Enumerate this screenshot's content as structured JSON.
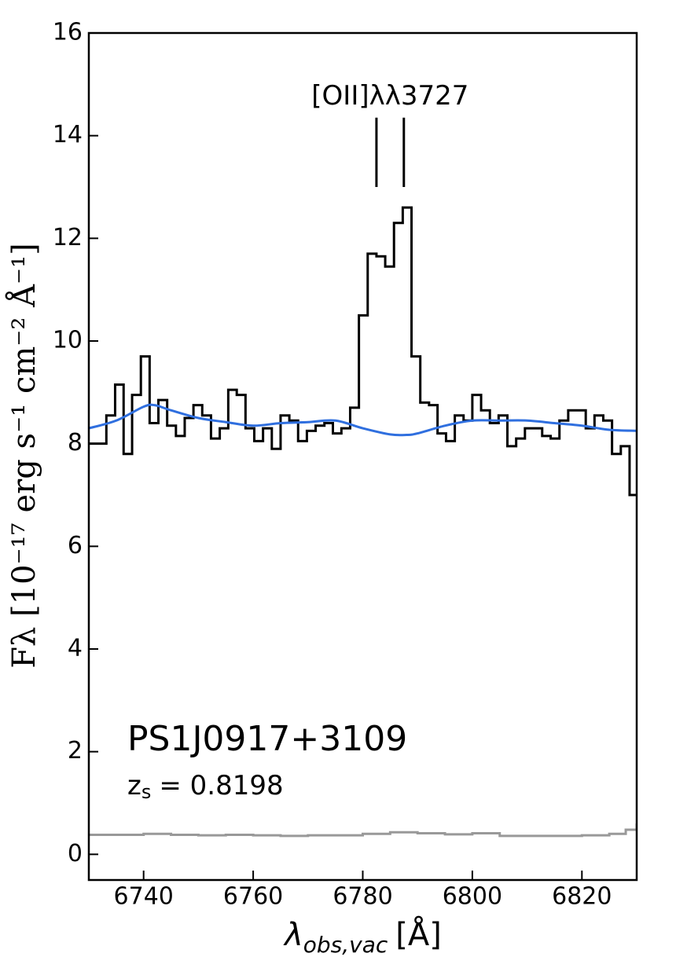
{
  "chart_data": {
    "type": "spectrum",
    "xlabel": {
      "symbol": "λ",
      "sub": "obs,vac",
      "unit": "[Å]"
    },
    "ylabel": "Fλ [10⁻¹⁷ erg s⁻¹ cm⁻² Å⁻¹]",
    "object": "PS1J0917+3109",
    "redshift": {
      "symbol": "z",
      "sub": "s",
      "text": "= 0.8198"
    },
    "line_annotation": {
      "text": "[OII]λλ3727",
      "x": [
        6782.5,
        6787.5
      ],
      "ymin": 13.0,
      "ymax": 14.35,
      "text_x": 6785,
      "text_y": 14.75
    },
    "xlim": [
      6730,
      6830
    ],
    "ylim": [
      -0.5,
      16
    ],
    "xticks": [
      6740,
      6760,
      6780,
      6800,
      6820
    ],
    "yticks": [
      0,
      2,
      4,
      6,
      8,
      10,
      12,
      14,
      16
    ],
    "series": [
      {
        "style": "steps-mid",
        "color": "#000000",
        "x": [
          6730.8,
          6732.4,
          6734.0,
          6735.6,
          6737.1,
          6738.7,
          6740.3,
          6741.9,
          6743.5,
          6745.1,
          6746.7,
          6748.3,
          6749.9,
          6751.5,
          6753.1,
          6754.7,
          6756.2,
          6757.8,
          6759.4,
          6761.0,
          6762.6,
          6764.2,
          6765.8,
          6767.4,
          6769.0,
          6770.6,
          6772.2,
          6773.8,
          6775.3,
          6776.9,
          6778.5,
          6780.1,
          6781.7,
          6783.3,
          6784.9,
          6786.5,
          6788.1,
          6789.7,
          6791.3,
          6792.9,
          6794.4,
          6796.0,
          6797.6,
          6799.2,
          6800.8,
          6802.4,
          6804.0,
          6805.6,
          6807.2,
          6808.8,
          6810.4,
          6812.0,
          6813.5,
          6815.1,
          6816.7,
          6818.3,
          6819.9,
          6821.5,
          6823.1,
          6824.7,
          6826.3,
          6827.9,
          6829.5
        ],
        "values": [
          8.0,
          8.0,
          8.55,
          9.15,
          7.8,
          8.95,
          9.7,
          8.4,
          8.85,
          8.35,
          8.15,
          8.5,
          8.75,
          8.55,
          8.1,
          8.3,
          9.05,
          8.95,
          8.3,
          8.05,
          8.3,
          7.9,
          8.55,
          8.45,
          8.05,
          8.25,
          8.35,
          8.4,
          8.2,
          8.3,
          8.7,
          10.5,
          11.7,
          11.65,
          11.45,
          12.3,
          12.6,
          9.7,
          8.8,
          8.75,
          8.2,
          8.05,
          8.55,
          8.45,
          8.95,
          8.65,
          8.4,
          8.55,
          7.95,
          8.1,
          8.3,
          8.3,
          8.15,
          8.1,
          8.45,
          8.65,
          8.65,
          8.3,
          8.55,
          8.45,
          7.8,
          7.95,
          7.0
        ]
      },
      {
        "style": "smooth",
        "color": "#2f6fdf",
        "x": [
          6730,
          6735,
          6740,
          6742,
          6745,
          6750,
          6755,
          6760,
          6765,
          6770,
          6775,
          6780,
          6785,
          6788,
          6790,
          6795,
          6800,
          6805,
          6810,
          6815,
          6820,
          6825,
          6830
        ],
        "values": [
          8.3,
          8.45,
          8.72,
          8.75,
          8.65,
          8.5,
          8.42,
          8.35,
          8.4,
          8.42,
          8.45,
          8.3,
          8.18,
          8.17,
          8.2,
          8.35,
          8.45,
          8.45,
          8.45,
          8.4,
          8.35,
          8.27,
          8.25
        ]
      },
      {
        "style": "steps-post",
        "color": "#999999",
        "x": [
          6730,
          6735,
          6740,
          6745,
          6750,
          6755,
          6760,
          6765,
          6770,
          6775,
          6780,
          6785,
          6790,
          6795,
          6800,
          6805,
          6810,
          6815,
          6820,
          6825,
          6828,
          6830
        ],
        "values": [
          0.38,
          0.38,
          0.4,
          0.38,
          0.37,
          0.38,
          0.37,
          0.36,
          0.37,
          0.37,
          0.4,
          0.43,
          0.41,
          0.39,
          0.41,
          0.36,
          0.36,
          0.36,
          0.37,
          0.4,
          0.48,
          0.6
        ]
      }
    ]
  }
}
